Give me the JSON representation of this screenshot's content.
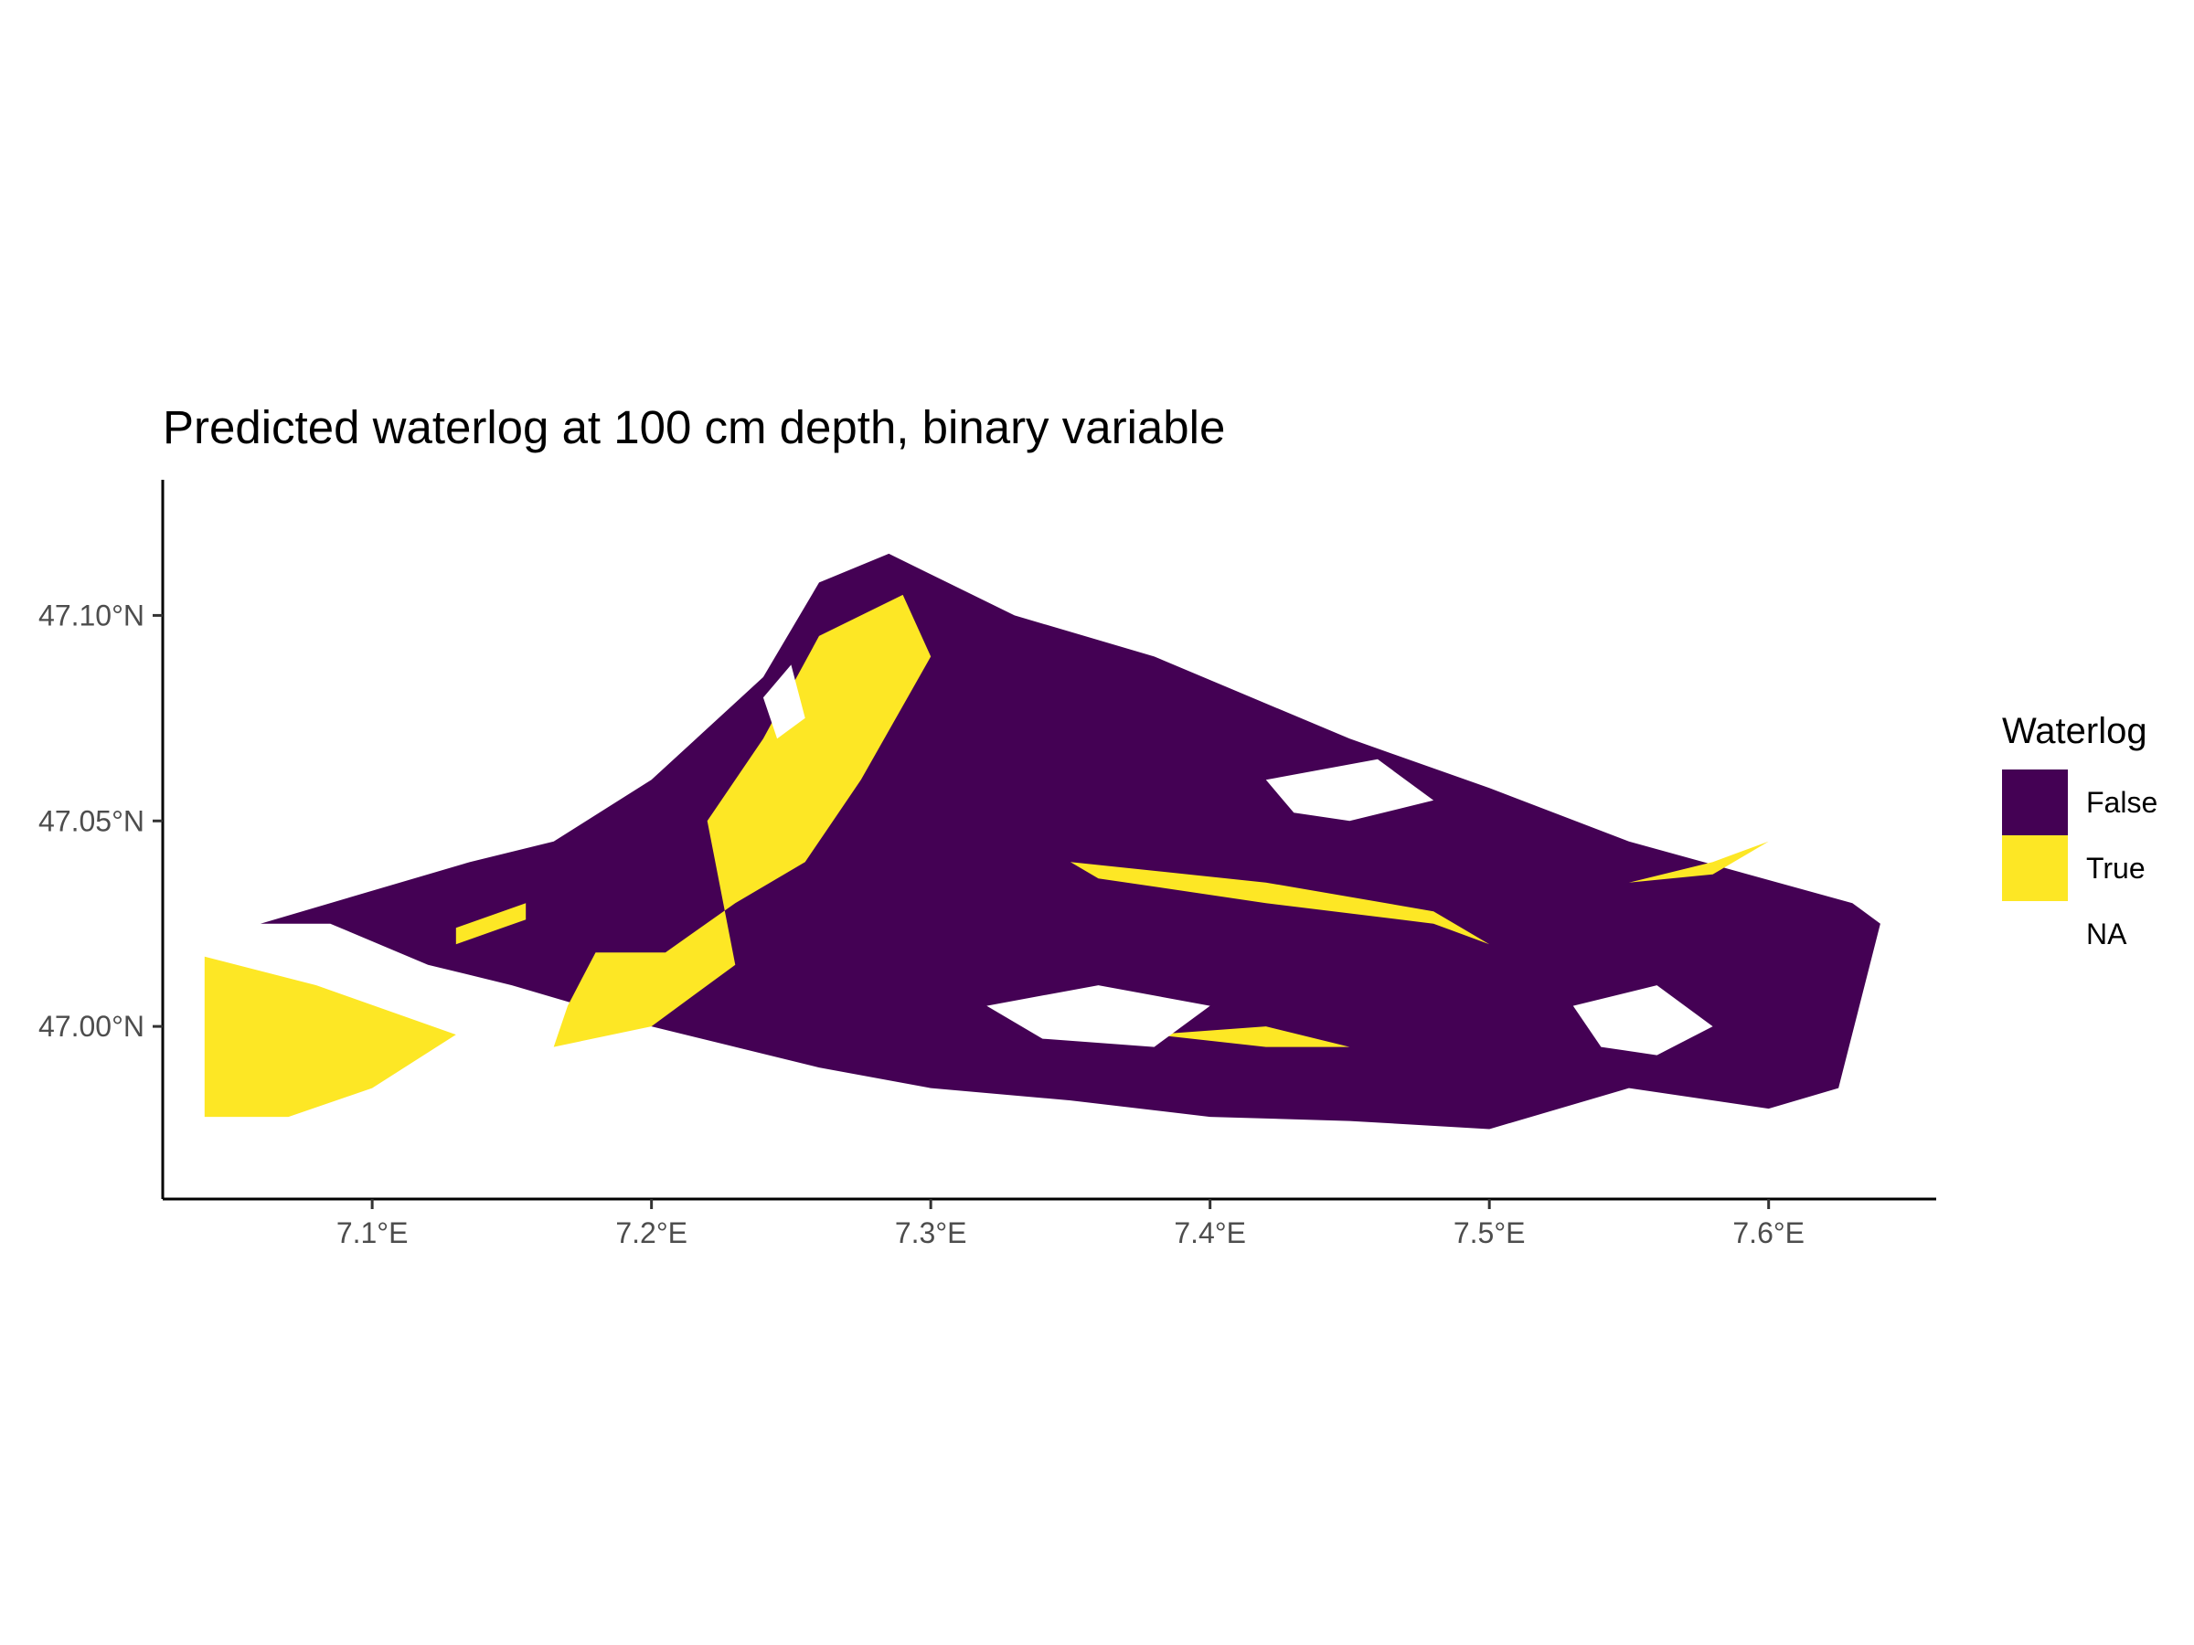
{
  "title": "Predicted waterlog at 100 cm depth, binary variable",
  "chart_data": {
    "type": "heatmap",
    "title": "Predicted waterlog at 100 cm depth, binary variable",
    "xlabel": "",
    "ylabel": "",
    "x_axis": {
      "range": [
        7.025,
        7.66
      ],
      "ticks": [
        {
          "value": 7.1,
          "label": "7.1°E"
        },
        {
          "value": 7.2,
          "label": "7.2°E"
        },
        {
          "value": 7.3,
          "label": "7.3°E"
        },
        {
          "value": 7.4,
          "label": "7.4°E"
        },
        {
          "value": 7.5,
          "label": "7.5°E"
        },
        {
          "value": 7.6,
          "label": "7.6°E"
        }
      ]
    },
    "y_axis": {
      "range": [
        46.958,
        47.133
      ],
      "ticks": [
        {
          "value": 47.0,
          "label": "47.00°N"
        },
        {
          "value": 47.05,
          "label": "47.05°N"
        },
        {
          "value": 47.1,
          "label": "47.10°N"
        }
      ]
    },
    "grid": false,
    "legend": {
      "title": "Waterlog",
      "placement": "right",
      "entries": [
        {
          "label": "False",
          "color": "#440154"
        },
        {
          "label": "True",
          "color": "#fde725"
        },
        {
          "label": "NA",
          "color": "#ffffff"
        }
      ]
    },
    "regions": [
      {
        "class": "False",
        "polygon": [
          [
            7.135,
            47.04
          ],
          [
            7.165,
            47.045
          ],
          [
            7.2,
            47.06
          ],
          [
            7.24,
            47.085
          ],
          [
            7.26,
            47.108
          ],
          [
            7.285,
            47.115
          ],
          [
            7.33,
            47.1
          ],
          [
            7.38,
            47.09
          ],
          [
            7.45,
            47.07
          ],
          [
            7.5,
            47.058
          ],
          [
            7.55,
            47.045
          ],
          [
            7.63,
            47.03
          ],
          [
            7.64,
            47.025
          ],
          [
            7.625,
            46.985
          ],
          [
            7.6,
            46.98
          ],
          [
            7.55,
            46.985
          ],
          [
            7.5,
            46.975
          ],
          [
            7.45,
            46.977
          ],
          [
            7.4,
            46.978
          ],
          [
            7.35,
            46.982
          ],
          [
            7.3,
            46.985
          ],
          [
            7.26,
            46.99
          ],
          [
            7.23,
            46.995
          ],
          [
            7.2,
            47.0
          ],
          [
            7.15,
            47.01
          ],
          [
            7.12,
            47.015
          ],
          [
            7.085,
            47.025
          ],
          [
            7.06,
            47.025
          ]
        ]
      },
      {
        "class": "True",
        "polygon": [
          [
            7.04,
            47.017
          ],
          [
            7.08,
            47.01
          ],
          [
            7.13,
            46.998
          ],
          [
            7.1,
            46.985
          ],
          [
            7.07,
            46.978
          ],
          [
            7.04,
            46.978
          ]
        ]
      },
      {
        "class": "True",
        "polygon": [
          [
            7.165,
            46.995
          ],
          [
            7.2,
            47.0
          ],
          [
            7.23,
            47.015
          ],
          [
            7.22,
            47.05
          ],
          [
            7.24,
            47.07
          ],
          [
            7.26,
            47.095
          ],
          [
            7.29,
            47.105
          ],
          [
            7.3,
            47.09
          ],
          [
            7.275,
            47.06
          ],
          [
            7.255,
            47.04
          ],
          [
            7.23,
            47.03
          ],
          [
            7.205,
            47.018
          ],
          [
            7.18,
            47.018
          ],
          [
            7.17,
            47.005
          ]
        ]
      },
      {
        "class": "True",
        "polygon": [
          [
            7.35,
            47.04
          ],
          [
            7.42,
            47.035
          ],
          [
            7.48,
            47.028
          ],
          [
            7.5,
            47.02
          ],
          [
            7.48,
            47.025
          ],
          [
            7.42,
            47.03
          ],
          [
            7.36,
            47.036
          ]
        ]
      },
      {
        "class": "True",
        "polygon": [
          [
            7.55,
            47.035
          ],
          [
            7.58,
            47.04
          ],
          [
            7.6,
            47.045
          ],
          [
            7.58,
            47.037
          ]
        ]
      },
      {
        "class": "True",
        "polygon": [
          [
            7.38,
            46.998
          ],
          [
            7.42,
            47.0
          ],
          [
            7.45,
            46.995
          ],
          [
            7.42,
            46.995
          ]
        ]
      },
      {
        "class": "True",
        "polygon": [
          [
            7.13,
            47.024
          ],
          [
            7.155,
            47.03
          ],
          [
            7.155,
            47.026
          ],
          [
            7.13,
            47.02
          ]
        ]
      },
      {
        "class": "NA",
        "polygon": [
          [
            7.32,
            47.005
          ],
          [
            7.36,
            47.01
          ],
          [
            7.4,
            47.005
          ],
          [
            7.38,
            46.995
          ],
          [
            7.34,
            46.997
          ]
        ]
      },
      {
        "class": "NA",
        "polygon": [
          [
            7.53,
            47.005
          ],
          [
            7.56,
            47.01
          ],
          [
            7.58,
            47.0
          ],
          [
            7.56,
            46.993
          ],
          [
            7.54,
            46.995
          ]
        ]
      },
      {
        "class": "NA",
        "polygon": [
          [
            7.42,
            47.06
          ],
          [
            7.46,
            47.065
          ],
          [
            7.48,
            47.055
          ],
          [
            7.45,
            47.05
          ],
          [
            7.43,
            47.052
          ]
        ]
      },
      {
        "class": "NA",
        "polygon": [
          [
            7.24,
            47.08
          ],
          [
            7.25,
            47.088
          ],
          [
            7.255,
            47.075
          ],
          [
            7.245,
            47.07
          ]
        ]
      }
    ]
  }
}
